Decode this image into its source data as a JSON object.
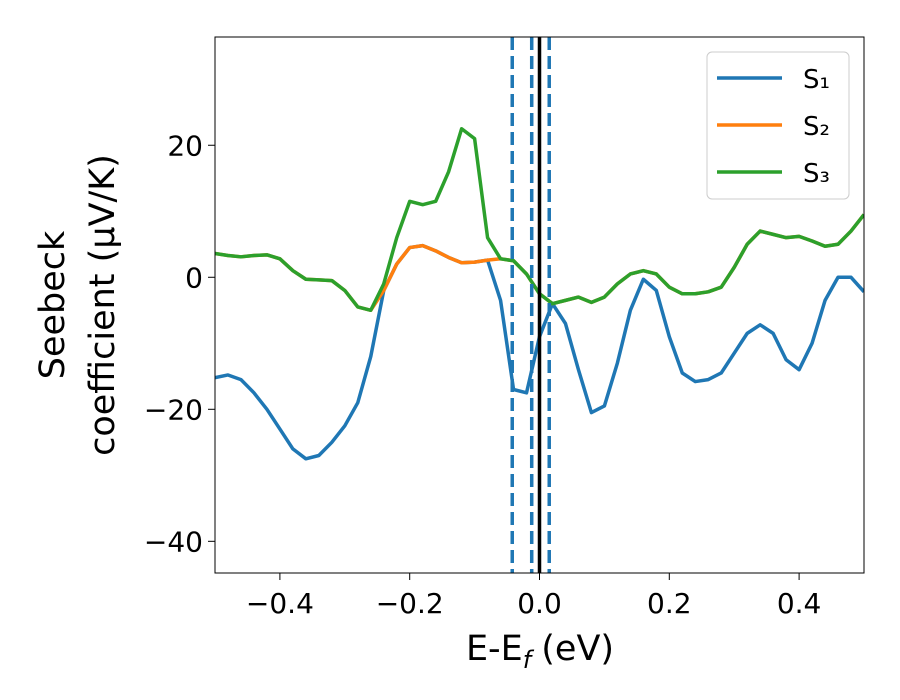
{
  "chart_data": {
    "type": "line",
    "xlabel": {
      "main": "E-E",
      "sub": "f",
      "unit": "(eV)"
    },
    "ylabel": [
      "Seebeck",
      "coefficient  (μV/K)"
    ],
    "xlim": [
      -0.5,
      0.5
    ],
    "ylim": [
      -44.8,
      36.4
    ],
    "xticks": [
      {
        "value": -0.4,
        "label": "−0.4"
      },
      {
        "value": -0.2,
        "label": "−0.2"
      },
      {
        "value": 0,
        "label": "0.0"
      },
      0.2,
      0.4
    ],
    "yticks": [
      {
        "value": -40,
        "label": "−40"
      },
      {
        "value": -20,
        "label": "−20"
      },
      0,
      20
    ],
    "grid": false,
    "legend": "upper right",
    "x": [
      -0.5,
      -0.48,
      -0.46,
      -0.44,
      -0.42,
      -0.4,
      -0.38,
      -0.36,
      -0.34,
      -0.32,
      -0.3,
      -0.28,
      -0.26,
      -0.24,
      -0.22,
      -0.2,
      -0.18,
      -0.16,
      -0.14,
      -0.12,
      -0.1,
      -0.08,
      -0.06,
      -0.04,
      -0.02,
      0,
      0.02,
      0.04,
      0.06,
      0.08,
      0.1,
      0.12,
      0.14,
      0.16,
      0.18,
      0.2,
      0.22,
      0.24,
      0.26,
      0.28,
      0.3,
      0.32,
      0.34,
      0.36,
      0.38,
      0.4,
      0.42,
      0.44,
      0.46,
      0.48,
      0.5
    ],
    "series": [
      {
        "name": "S₁",
        "color": "#1f77b4",
        "values": [
          -15.2,
          -14.8,
          -15.5,
          -17.5,
          -20,
          -23,
          -26,
          -27.5,
          -27,
          -25,
          -22.5,
          -19,
          -12,
          -2,
          2,
          4.5,
          4.8,
          4,
          3,
          2.2,
          2.3,
          2.6,
          -3.5,
          -17,
          -17.5,
          -9,
          -4,
          -7,
          -14,
          -20.5,
          -19.5,
          -13,
          -5,
          -0.3,
          -2,
          -9,
          -14.5,
          -15.8,
          -15.5,
          -14.5,
          -11.5,
          -8.5,
          -7.2,
          -8.5,
          -12.5,
          -14,
          -10,
          -3.5,
          0,
          0,
          -2.2
        ]
      },
      {
        "name": "S₂",
        "color": "#ff7f0e",
        "values": [
          3.6,
          3.3,
          3.1,
          3.3,
          3.4,
          2.8,
          1,
          -0.3,
          -0.4,
          -0.5,
          -2,
          -4.5,
          -5,
          -2,
          2,
          4.5,
          4.8,
          4,
          3,
          2.2,
          2.3,
          2.6,
          2.8,
          2.5,
          0.5,
          -2.5,
          -4,
          -3.5,
          -3,
          -3.8,
          -3,
          -1,
          0.5,
          1,
          0.5,
          -1.5,
          -2.5,
          -2.5,
          -2.2,
          -1.5,
          1.5,
          5,
          7,
          6.5,
          6,
          6.2,
          5.5,
          4.7,
          5,
          7,
          9.5
        ]
      },
      {
        "name": "S₃",
        "color": "#2ca02c",
        "values": [
          3.6,
          3.3,
          3.1,
          3.3,
          3.4,
          2.8,
          1,
          -0.3,
          -0.4,
          -0.5,
          -2,
          -4.5,
          -5,
          -1,
          6,
          11.5,
          11,
          11.5,
          16,
          22.5,
          21,
          6,
          2.8,
          2.5,
          0.5,
          -2.5,
          -4,
          -3.5,
          -3,
          -3.8,
          -3,
          -1,
          0.5,
          1,
          0.5,
          -1.5,
          -2.5,
          -2.5,
          -2.2,
          -1.5,
          1.5,
          5,
          7,
          6.5,
          6,
          6.2,
          5.5,
          4.7,
          5,
          7,
          9.5
        ]
      }
    ],
    "vlines": [
      {
        "x": -0.042,
        "style": "dashed",
        "color": "#1f77b4"
      },
      {
        "x": -0.012,
        "style": "dashed",
        "color": "#1f77b4"
      },
      {
        "x": 0.015,
        "style": "dashed",
        "color": "#1f77b4"
      },
      {
        "x": 0,
        "style": "solid",
        "color": "#000000"
      }
    ]
  }
}
